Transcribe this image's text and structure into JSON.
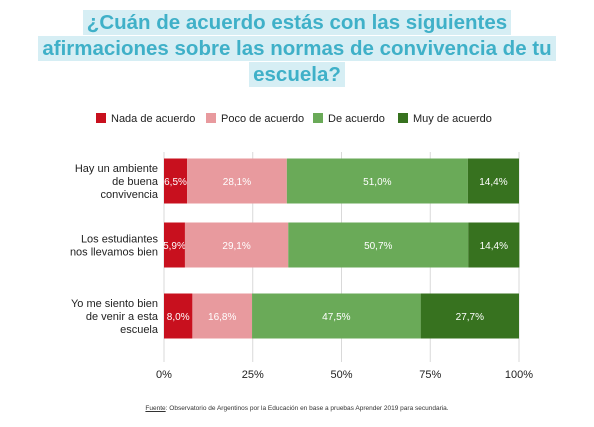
{
  "chart_data": {
    "type": "bar",
    "stacked": true,
    "orientation": "horizontal",
    "title": "¿Cuán de acuerdo estás con las siguientes afirmaciones sobre las normas de convivencia de tu escuela?",
    "title_lines": [
      "¿Cuán de acuerdo estás con las siguientes",
      "afirmaciones sobre las normas de convivencia de tu",
      "escuela?"
    ],
    "categories": [
      "Hay un ambiente de buena convivencia",
      "Los estudiantes nos llevamos bien",
      "Yo me siento bien de venir a esta escuela"
    ],
    "category_lines": [
      [
        "Hay un ambiente",
        "de buena",
        "convivencia"
      ],
      [
        "Los estudiantes",
        "nos llevamos bien"
      ],
      [
        "Yo me siento bien",
        "de venir a esta",
        "escuela"
      ]
    ],
    "series": [
      {
        "name": "Nada de acuerdo",
        "color": "#c8101e",
        "values": [
          6.5,
          5.9,
          8.0
        ],
        "labels": [
          "6,5%",
          "5,9%",
          "8,0%"
        ]
      },
      {
        "name": "Poco de acuerdo",
        "color": "#e89a9e",
        "values": [
          28.1,
          29.1,
          16.8
        ],
        "labels": [
          "28,1%",
          "29,1%",
          "16,8%"
        ]
      },
      {
        "name": "De acuerdo",
        "color": "#6aaa58",
        "values": [
          51.0,
          50.7,
          47.5
        ],
        "labels": [
          "51,0%",
          "50,7%",
          "47,5%"
        ]
      },
      {
        "name": "Muy de acuerdo",
        "color": "#37721f",
        "values": [
          14.4,
          14.4,
          27.7
        ],
        "labels": [
          "14,4%",
          "14,4%",
          "27,7%"
        ]
      }
    ],
    "xlim": [
      0,
      100
    ],
    "xticks": [
      "0%",
      "25%",
      "50%",
      "75%",
      "100%"
    ],
    "xtick_values": [
      0,
      25,
      50,
      75,
      100
    ],
    "grid": true,
    "legend_position": "top",
    "source_label": "Fuente",
    "source_text": ": Observatorio de Argentinos por la Educación en base a pruebas Aprender 2019 para secundaria."
  }
}
